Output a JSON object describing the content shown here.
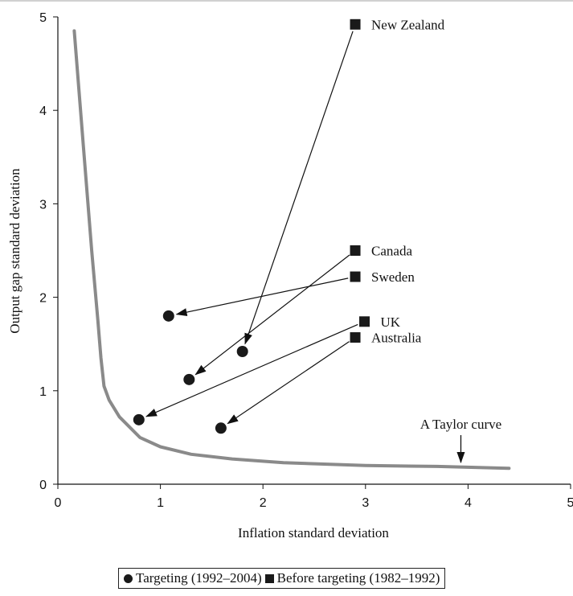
{
  "chart_data": {
    "type": "scatter",
    "xlabel": "Inflation standard deviation",
    "ylabel": "Output gap standard deviation",
    "xlim": [
      0,
      5
    ],
    "ylim": [
      0,
      5
    ],
    "x_ticks": [
      "0",
      "1",
      "2",
      "3",
      "4",
      "5"
    ],
    "y_ticks": [
      "0",
      "1",
      "2",
      "3",
      "4",
      "5"
    ],
    "series": [
      {
        "name": "Targeting (1992–2004)",
        "marker": "circle",
        "points": [
          {
            "country": "New Zealand",
            "x": 1.8,
            "y": 1.42
          },
          {
            "country": "Canada",
            "x": 1.28,
            "y": 1.12
          },
          {
            "country": "Sweden",
            "x": 1.08,
            "y": 1.8
          },
          {
            "country": "UK",
            "x": 0.79,
            "y": 0.69
          },
          {
            "country": "Australia",
            "x": 1.59,
            "y": 0.6
          }
        ]
      },
      {
        "name": "Before targeting (1982–1992)",
        "marker": "square",
        "points": [
          {
            "country": "New Zealand",
            "x": 2.9,
            "y": 4.92
          },
          {
            "country": "Canada",
            "x": 2.9,
            "y": 2.5
          },
          {
            "country": "Sweden",
            "x": 2.9,
            "y": 2.22
          },
          {
            "country": "UK",
            "x": 2.99,
            "y": 1.74
          },
          {
            "country": "Australia",
            "x": 2.9,
            "y": 1.57
          }
        ]
      }
    ],
    "point_labels": [
      "New Zealand",
      "Canada",
      "Sweden",
      "UK",
      "Australia"
    ],
    "taylor_curve": {
      "label": "A Taylor curve",
      "points": [
        [
          0.16,
          4.85
        ],
        [
          0.25,
          3.6
        ],
        [
          0.33,
          2.5
        ],
        [
          0.39,
          1.75
        ],
        [
          0.42,
          1.35
        ],
        [
          0.45,
          1.05
        ],
        [
          0.5,
          0.9
        ],
        [
          0.6,
          0.72
        ],
        [
          0.8,
          0.5
        ],
        [
          1.0,
          0.4
        ],
        [
          1.3,
          0.32
        ],
        [
          1.7,
          0.27
        ],
        [
          2.2,
          0.23
        ],
        [
          3.0,
          0.2
        ],
        [
          3.7,
          0.19
        ],
        [
          4.4,
          0.17
        ]
      ],
      "annotation_x": 3.93,
      "color": "#8a8a8a"
    },
    "arrows": "from before-targeting point to targeting point for each country",
    "legend": {
      "position": "bottom",
      "items": [
        "Targeting (1992–2004)",
        "Before targeting (1982–1992)"
      ]
    },
    "grid": false,
    "marker_color": "#1a1a1a"
  }
}
